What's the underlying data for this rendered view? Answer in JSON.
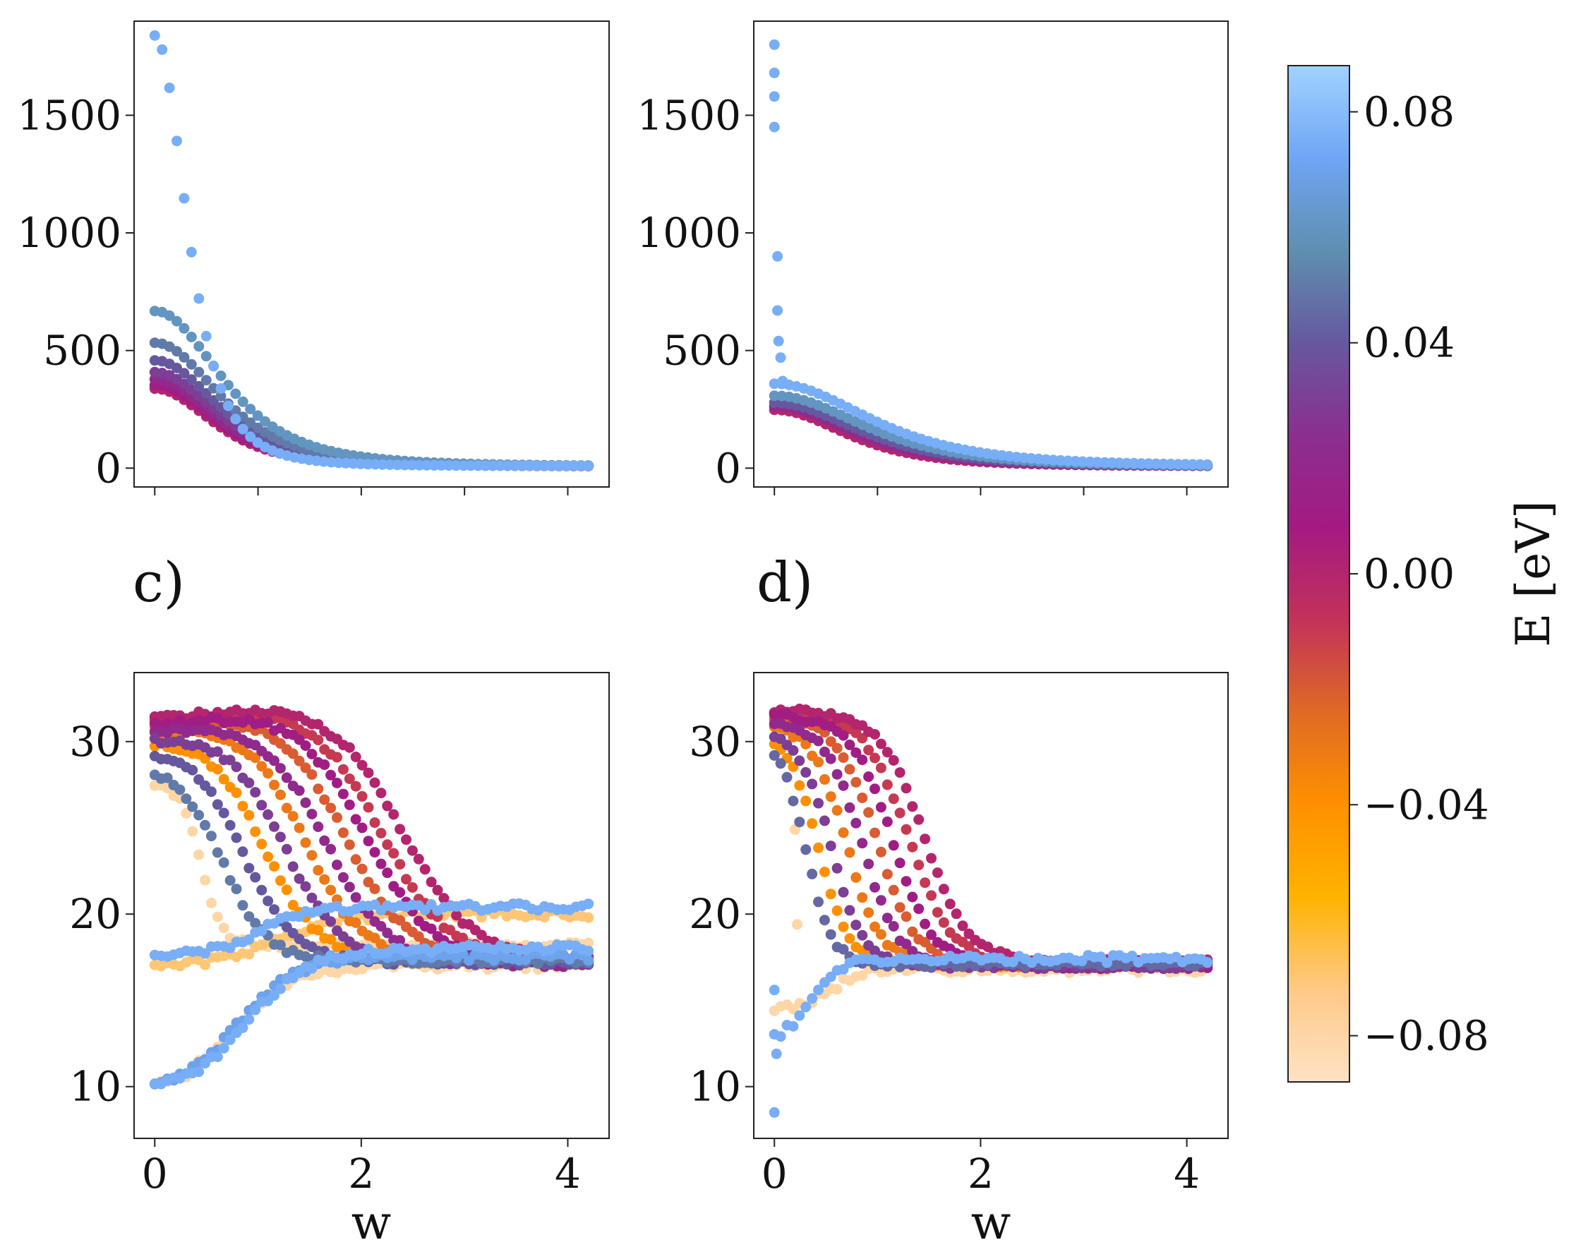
{
  "colors": {
    "colormap": [
      "#ffe2c6",
      "#ffc986",
      "#ffb300",
      "#ff9000",
      "#e06a24",
      "#c2325a",
      "#a41a82",
      "#8b2f8f",
      "#66589e",
      "#5f8faf",
      "#6fa5f5",
      "#a0d3ff"
    ]
  },
  "colorbar": {
    "label": "E [eV]",
    "range": [
      -0.088,
      0.088
    ],
    "ticks": [
      {
        "value": 0.08,
        "label": "0.08"
      },
      {
        "value": 0.04,
        "label": "0.04"
      },
      {
        "value": 0.0,
        "label": "0.00"
      },
      {
        "value": -0.04,
        "label": "−0.04"
      },
      {
        "value": -0.08,
        "label": "−0.08"
      }
    ]
  },
  "chart_data": [
    {
      "panel": "a",
      "type": "scatter",
      "title": "",
      "xlabel": "",
      "ylabel": "",
      "xlim": [
        -0.2,
        4.4
      ],
      "ylim": [
        -80,
        1900
      ],
      "x_ticks": [
        0,
        1,
        2,
        3,
        4
      ],
      "x_tick_labels_visible": false,
      "y_ticks": [
        0,
        500,
        1000,
        1500
      ],
      "y_tick_labels": [
        "0",
        "500",
        "1000",
        "1500"
      ],
      "curve_family": {
        "model": "peak * (1 + (x/half_w)^2)^-2 + tail",
        "x_range": [
          0,
          4.2
        ],
        "points_per_series": 60,
        "series": [
          {
            "E": 0.0,
            "peak": 330,
            "half_w": 1.0,
            "tail": 8
          },
          {
            "E": 0.01,
            "peak": 345,
            "half_w": 1.02,
            "tail": 8
          },
          {
            "E": 0.02,
            "peak": 370,
            "half_w": 1.05,
            "tail": 8
          },
          {
            "E": 0.03,
            "peak": 400,
            "half_w": 1.08,
            "tail": 8
          },
          {
            "E": 0.04,
            "peak": 450,
            "half_w": 1.1,
            "tail": 8
          },
          {
            "E": 0.05,
            "peak": 525,
            "half_w": 1.12,
            "tail": 8
          },
          {
            "E": 0.06,
            "peak": 660,
            "half_w": 1.15,
            "tail": 8
          },
          {
            "E": 0.075,
            "peak": 1830,
            "half_w": 0.55,
            "tail": 9
          }
        ]
      }
    },
    {
      "panel": "b",
      "type": "scatter",
      "title": "",
      "xlabel": "",
      "ylabel": "",
      "xlim": [
        -0.2,
        4.4
      ],
      "ylim": [
        -80,
        1900
      ],
      "x_ticks": [
        0,
        1,
        2,
        3,
        4
      ],
      "x_tick_labels_visible": false,
      "y_ticks": [
        0,
        500,
        1000,
        1500
      ],
      "y_tick_labels": [
        "0",
        "500",
        "1000",
        "1500"
      ],
      "curve_family": {
        "model": "peak * (1 + (x/half_w)^2)^-2 + tail",
        "x_range": [
          0,
          4.2
        ],
        "points_per_series": 60,
        "series": [
          {
            "E": 0.0,
            "peak": 240,
            "half_w": 1.25,
            "tail": 8
          },
          {
            "E": 0.02,
            "peak": 255,
            "half_w": 1.35,
            "tail": 8
          },
          {
            "E": 0.04,
            "peak": 270,
            "half_w": 1.45,
            "tail": 8
          },
          {
            "E": 0.06,
            "peak": 300,
            "half_w": 1.55,
            "tail": 8
          },
          {
            "E": 0.075,
            "peak": 350,
            "half_w": 1.65,
            "tail": 9
          }
        ],
        "extra_points": [
          {
            "x": 0.0,
            "y": 1800,
            "E": 0.075
          },
          {
            "x": 0.0,
            "y": 1680,
            "E": 0.075
          },
          {
            "x": 0.0,
            "y": 1580,
            "E": 0.075
          },
          {
            "x": 0.0,
            "y": 1450,
            "E": 0.075
          },
          {
            "x": 0.03,
            "y": 900,
            "E": 0.075
          },
          {
            "x": 0.03,
            "y": 670,
            "E": 0.075
          },
          {
            "x": 0.04,
            "y": 540,
            "E": 0.075
          },
          {
            "x": 0.06,
            "y": 470,
            "E": 0.075
          },
          {
            "x": 0.08,
            "y": 370,
            "E": 0.075
          }
        ]
      }
    },
    {
      "panel": "c",
      "label": "c)",
      "type": "scatter",
      "title": "",
      "xlabel": "w",
      "ylabel": "",
      "xlim": [
        -0.2,
        4.4
      ],
      "ylim": [
        7,
        34
      ],
      "x_ticks": [
        0,
        2,
        4
      ],
      "x_tick_labels": [
        "0",
        "2",
        "4"
      ],
      "y_ticks": [
        10,
        20,
        30
      ],
      "y_tick_labels": [
        "10",
        "20",
        "30"
      ],
      "curve_family": {
        "model": "drop curves: high + hump - (high - low)/(1 + exp(-(x - x0)/width)); rising curves: low + (high - low)/(1 + exp(-(x - x0)/width))",
        "x_range": [
          0,
          4.2
        ],
        "points_per_series": 70,
        "drop_series": [
          {
            "E": 0.0,
            "high": 31.0,
            "low": 17.3,
            "x0": 2.4,
            "width": 0.33,
            "hump": 1.0
          },
          {
            "E": -0.01,
            "high": 30.9,
            "low": 17.3,
            "x0": 2.2,
            "width": 0.32,
            "hump": 0.9
          },
          {
            "E": 0.01,
            "high": 30.7,
            "low": 17.1,
            "x0": 2.05,
            "width": 0.32,
            "hump": 0.9
          },
          {
            "E": -0.02,
            "high": 30.6,
            "low": 17.3,
            "x0": 1.85,
            "width": 0.3,
            "hump": 0.8
          },
          {
            "E": 0.02,
            "high": 30.3,
            "low": 17.1,
            "x0": 1.65,
            "width": 0.3,
            "hump": 0.8
          },
          {
            "E": -0.03,
            "high": 30.2,
            "low": 17.3,
            "x0": 1.45,
            "width": 0.28,
            "hump": 0.7
          },
          {
            "E": 0.03,
            "high": 29.9,
            "low": 17.2,
            "x0": 1.25,
            "width": 0.28,
            "hump": 0.6
          },
          {
            "E": -0.04,
            "high": 29.8,
            "low": 17.4,
            "x0": 1.05,
            "width": 0.26,
            "hump": 0.5
          },
          {
            "E": 0.04,
            "high": 29.4,
            "low": 17.2,
            "x0": 0.85,
            "width": 0.25,
            "hump": 0.4
          },
          {
            "E": 0.05,
            "high": 28.6,
            "low": 17.3,
            "x0": 0.65,
            "width": 0.22,
            "hump": 0.2
          },
          {
            "E": -0.08,
            "high": 27.6,
            "low": 18.2,
            "x0": 0.45,
            "width": 0.1,
            "hump": 0.0
          }
        ],
        "rise_series": [
          {
            "E": 0.075,
            "low": 9.6,
            "high": 18.0,
            "x0": 0.9,
            "width": 0.3
          },
          {
            "E": 0.07,
            "low": 9.6,
            "high": 17.5,
            "x0": 0.8,
            "width": 0.28
          },
          {
            "E": -0.08,
            "low": 9.5,
            "high": 17.0,
            "x0": 0.75,
            "width": 0.28
          },
          {
            "E": -0.07,
            "low": 17.0,
            "high": 20.0,
            "x0": 1.2,
            "width": 0.3
          },
          {
            "E": 0.075,
            "low": 17.5,
            "high": 20.4,
            "x0": 1.0,
            "width": 0.25
          }
        ]
      }
    },
    {
      "panel": "d",
      "label": "d)",
      "type": "scatter",
      "title": "",
      "xlabel": "w",
      "ylabel": "",
      "xlim": [
        -0.2,
        4.4
      ],
      "ylim": [
        7,
        34
      ],
      "x_ticks": [
        0,
        2,
        4
      ],
      "x_tick_labels": [
        "0",
        "2",
        "4"
      ],
      "y_ticks": [
        10,
        20,
        30
      ],
      "y_tick_labels": [
        "10",
        "20",
        "30"
      ],
      "curve_family": {
        "model": "drop curves: high + hump - (high - low)/(1 + exp(-(x - x0)/width)); rising curves: low + (high - low)/(1 + exp(-(x - x0)/width))",
        "x_range": [
          0,
          4.2
        ],
        "points_per_series": 70,
        "drop_series": [
          {
            "E": 0.0,
            "high": 31.8,
            "low": 17.2,
            "x0": 1.45,
            "width": 0.22,
            "hump": 0.0
          },
          {
            "E": -0.01,
            "high": 31.6,
            "low": 17.2,
            "x0": 1.3,
            "width": 0.21,
            "hump": 0.0
          },
          {
            "E": 0.01,
            "high": 31.5,
            "low": 17.0,
            "x0": 1.15,
            "width": 0.2,
            "hump": 0.0
          },
          {
            "E": -0.02,
            "high": 31.3,
            "low": 17.1,
            "x0": 1.0,
            "width": 0.19,
            "hump": 0.0
          },
          {
            "E": 0.02,
            "high": 31.1,
            "low": 17.0,
            "x0": 0.85,
            "width": 0.18,
            "hump": 0.0
          },
          {
            "E": -0.03,
            "high": 31.0,
            "low": 17.1,
            "x0": 0.7,
            "width": 0.17,
            "hump": 0.0
          },
          {
            "E": 0.03,
            "high": 30.8,
            "low": 17.0,
            "x0": 0.55,
            "width": 0.16,
            "hump": 0.0
          },
          {
            "E": -0.04,
            "high": 30.7,
            "low": 17.1,
            "x0": 0.42,
            "width": 0.15,
            "hump": 0.0
          },
          {
            "E": 0.045,
            "high": 30.5,
            "low": 17.1,
            "x0": 0.3,
            "width": 0.13,
            "hump": 0.0
          }
        ],
        "rise_series": [
          {
            "E": 0.075,
            "low": 12.5,
            "high": 17.4,
            "x0": 0.35,
            "width": 0.15
          },
          {
            "E": -0.08,
            "low": 14.5,
            "high": 16.8,
            "x0": 0.55,
            "width": 0.15
          }
        ],
        "extra_points": [
          {
            "x": 0.0,
            "y": 8.5,
            "E": 0.075
          },
          {
            "x": 0.0,
            "y": 15.6,
            "E": 0.075
          },
          {
            "x": 0.02,
            "y": 11.9,
            "E": 0.075
          },
          {
            "x": 0.2,
            "y": 24.9,
            "E": -0.08
          },
          {
            "x": 0.22,
            "y": 19.4,
            "E": -0.08
          }
        ]
      }
    }
  ]
}
